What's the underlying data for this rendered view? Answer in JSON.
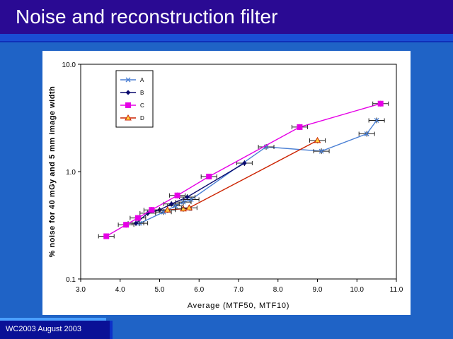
{
  "slide": {
    "title": "Noise and reconstruction filter",
    "footer": "WC2003 August 2003"
  },
  "colors": {
    "background": "#1f63c6",
    "title_bar": "#2a0a93",
    "footer_block": "#0a1196",
    "A": "#4a7fd4",
    "B": "#0a0a6e",
    "C": "#e600e6",
    "D": "#cc2200"
  },
  "chart_data": {
    "type": "line",
    "title": "",
    "xlabel": "Average (MTF50, MTF10)",
    "ylabel": "% noise for 40 mGy and 5 mm image width",
    "xlim": [
      3.0,
      11.0
    ],
    "ylim": [
      0.1,
      10.0
    ],
    "yscale": "log",
    "x_ticks": [
      "3.0",
      "4.0",
      "5.0",
      "6.0",
      "7.0",
      "8.0",
      "9.0",
      "10.0",
      "11.0"
    ],
    "y_ticks": [
      "0.1",
      "1.0",
      "10.0"
    ],
    "y_tick_values": [
      0.1,
      1.0,
      10.0
    ],
    "grid": false,
    "error_bars": "horizontal",
    "legend_position": "top-left",
    "series": [
      {
        "name": "A",
        "marker": "x",
        "color": "#4a7fd4",
        "points": [
          [
            4.5,
            0.33
          ],
          [
            5.1,
            0.42
          ],
          [
            5.4,
            0.48
          ],
          [
            5.6,
            0.52
          ],
          [
            5.8,
            0.55
          ],
          [
            7.7,
            1.7
          ],
          [
            9.1,
            1.55
          ],
          [
            10.25,
            2.25
          ],
          [
            10.5,
            3.0
          ]
        ]
      },
      {
        "name": "B",
        "marker": "diamond",
        "color": "#0a0a6e",
        "points": [
          [
            4.4,
            0.33
          ],
          [
            4.7,
            0.41
          ],
          [
            5.0,
            0.44
          ],
          [
            5.3,
            0.5
          ],
          [
            5.7,
            0.58
          ],
          [
            7.15,
            1.2
          ]
        ]
      },
      {
        "name": "C",
        "marker": "square",
        "color": "#e600e6",
        "points": [
          [
            3.65,
            0.25
          ],
          [
            4.15,
            0.32
          ],
          [
            4.45,
            0.37
          ],
          [
            4.8,
            0.44
          ],
          [
            5.45,
            0.6
          ],
          [
            6.25,
            0.9
          ],
          [
            8.55,
            2.6
          ],
          [
            10.6,
            4.3
          ]
        ]
      },
      {
        "name": "D",
        "marker": "triangle",
        "color": "#cc2200",
        "points": [
          [
            5.2,
            0.44
          ],
          [
            5.6,
            0.45
          ],
          [
            5.75,
            0.46
          ],
          [
            9.0,
            1.95
          ]
        ]
      }
    ]
  }
}
